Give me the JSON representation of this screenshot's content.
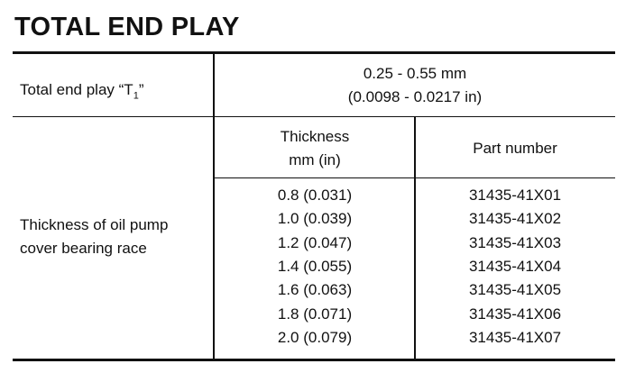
{
  "header": {
    "title": "TOTAL END PLAY"
  },
  "table": {
    "end_play": {
      "label": "Total end play “T",
      "label_sub": "1",
      "label_end": "”",
      "value_mm": "0.25 - 0.55 mm",
      "value_in": "(0.0098 - 0.0217 in)"
    },
    "race": {
      "label_line1": "Thickness of oil pump",
      "label_line2": "cover bearing race",
      "col_thickness_line1": "Thickness",
      "col_thickness_line2": "mm (in)",
      "col_part": "Part number",
      "rows": [
        [
          "0.8 (0.031)",
          "31435-41X01"
        ],
        [
          "1.0 (0.039)",
          "31435-41X02"
        ],
        [
          "1.2 (0.047)",
          "31435-41X03"
        ],
        [
          "1.4 (0.055)",
          "31435-41X04"
        ],
        [
          "1.6 (0.063)",
          "31435-41X05"
        ],
        [
          "1.8 (0.071)",
          "31435-41X06"
        ],
        [
          "2.0 (0.079)",
          "31435-41X07"
        ]
      ]
    }
  }
}
